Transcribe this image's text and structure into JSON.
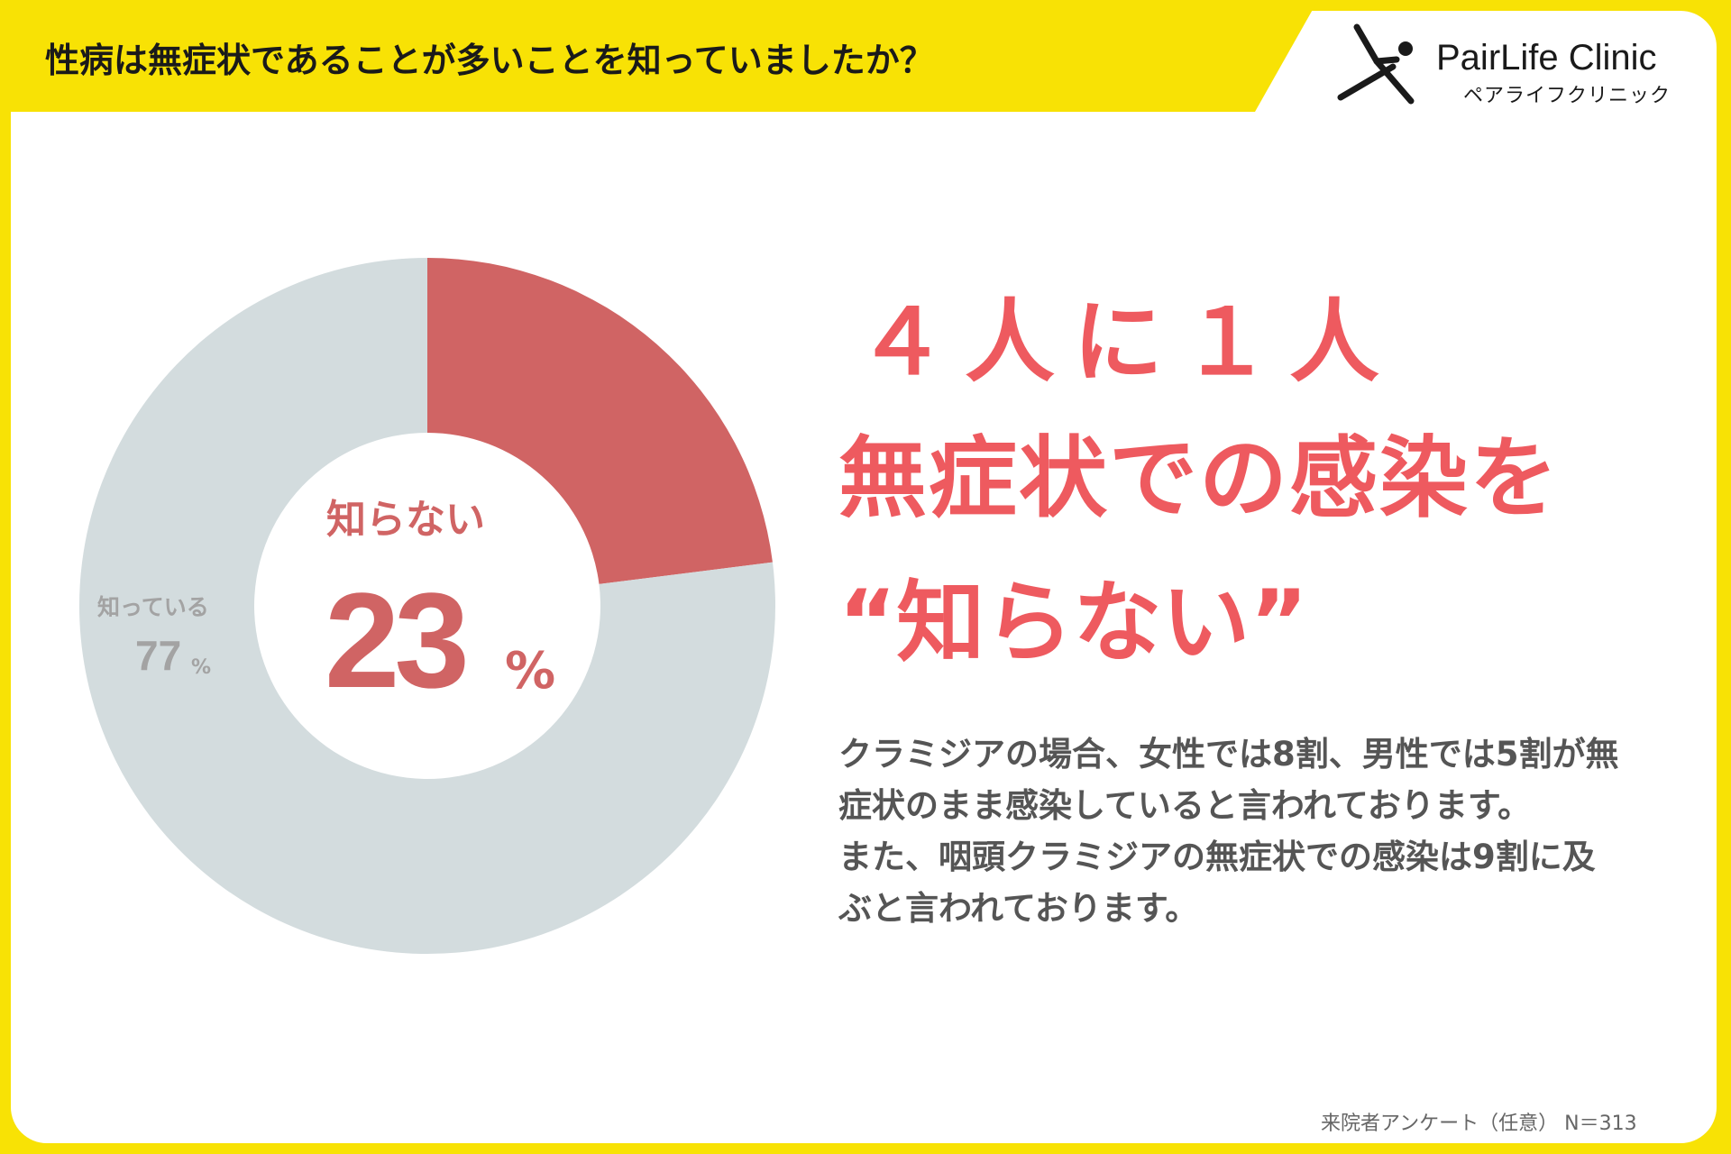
{
  "header": {
    "question": "性病は無症状であることが多いことを知っていましたか？"
  },
  "logo": {
    "name": "PairLife Clinic",
    "kana": "ペアライフクリニック",
    "icon": "running-figure-icon"
  },
  "chart_data": {
    "type": "pie",
    "style": "donut",
    "slices": [
      {
        "label": "知らない",
        "value": 23,
        "color": "#d06464"
      },
      {
        "label": "知っている",
        "value": 77,
        "color": "#d3dcde"
      }
    ],
    "center_label": "知らない",
    "center_value": "23",
    "center_unit": "%",
    "outer_label": "知っている",
    "outer_value": "77",
    "outer_unit": "%"
  },
  "headline": {
    "line1": "４人に１人",
    "line2": "無症状での感染を",
    "line3": "“知らない”"
  },
  "body": {
    "lines": [
      "クラミジアの場合、女性では8割、男性では5割が無",
      "症状のまま感染していると言われております。",
      "また、咽頭クラミジアの無症状での感染は9割に及",
      "ぶと言われております。"
    ]
  },
  "footer": {
    "source": "来院者アンケート（任意） N＝313"
  },
  "colors": {
    "frame": "#f8e205",
    "accent": "#ee5a5f",
    "donut_red": "#d06464",
    "donut_gray": "#d3dcde"
  }
}
